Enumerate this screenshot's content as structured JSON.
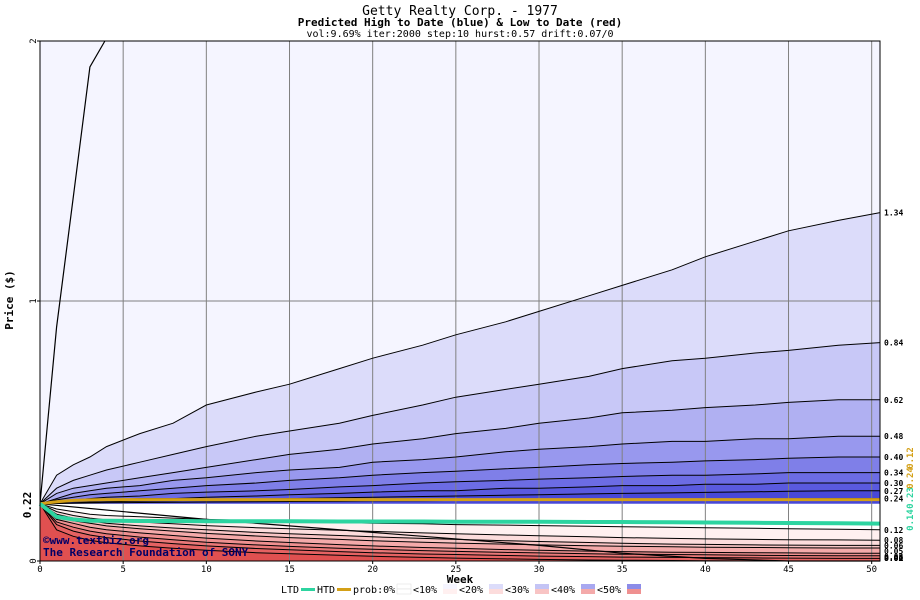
{
  "chart_data": {
    "type": "area",
    "title": "Getty Realty Corp. - 1977",
    "subtitle": "Predicted High to Date (blue) &  Low to Date (red)",
    "params": "vol:9.69% iter:2000 step:10 hurst:0.57 drift:0.07/0",
    "xlabel": "Week",
    "ylabel": "Price ($)",
    "xlim": [
      0,
      50.5
    ],
    "ylim": [
      0,
      2
    ],
    "x_ticks": [
      0,
      5,
      10,
      15,
      20,
      25,
      30,
      35,
      40,
      45,
      50
    ],
    "y_ticks": [
      0,
      1,
      2
    ],
    "start_value": 0.22,
    "start_label": "0.22",
    "grid": true,
    "x": [
      0,
      1,
      2,
      3,
      4,
      6,
      8,
      10,
      13,
      15,
      18,
      20,
      23,
      25,
      28,
      30,
      33,
      35,
      38,
      40,
      43,
      45,
      48,
      50.5
    ],
    "high_series": [
      {
        "name": "1.34",
        "label": "1.34",
        "values": [
          0.22,
          0.33,
          0.37,
          0.4,
          0.44,
          0.49,
          0.53,
          0.6,
          0.65,
          0.68,
          0.74,
          0.78,
          0.83,
          0.87,
          0.92,
          0.96,
          1.02,
          1.06,
          1.12,
          1.17,
          1.23,
          1.27,
          1.31,
          1.34
        ]
      },
      {
        "name": "0.84",
        "label": "0.84",
        "values": [
          0.22,
          0.28,
          0.31,
          0.33,
          0.35,
          0.38,
          0.41,
          0.44,
          0.48,
          0.5,
          0.53,
          0.56,
          0.6,
          0.63,
          0.66,
          0.68,
          0.71,
          0.74,
          0.77,
          0.78,
          0.8,
          0.81,
          0.83,
          0.84
        ]
      },
      {
        "name": "0.62",
        "label": "0.62",
        "values": [
          0.22,
          0.26,
          0.28,
          0.29,
          0.3,
          0.32,
          0.34,
          0.36,
          0.39,
          0.41,
          0.43,
          0.45,
          0.47,
          0.49,
          0.51,
          0.53,
          0.55,
          0.57,
          0.58,
          0.59,
          0.6,
          0.61,
          0.62,
          0.62
        ]
      },
      {
        "name": "0.48",
        "label": "0.48",
        "values": [
          0.22,
          0.24,
          0.26,
          0.27,
          0.28,
          0.29,
          0.31,
          0.32,
          0.34,
          0.35,
          0.36,
          0.38,
          0.39,
          0.4,
          0.42,
          0.43,
          0.44,
          0.45,
          0.46,
          0.46,
          0.47,
          0.47,
          0.48,
          0.48
        ]
      },
      {
        "name": "0.40",
        "label": "0.40",
        "values": [
          0.22,
          0.235,
          0.245,
          0.255,
          0.26,
          0.27,
          0.28,
          0.29,
          0.3,
          0.31,
          0.32,
          0.33,
          0.34,
          0.345,
          0.355,
          0.36,
          0.37,
          0.375,
          0.38,
          0.385,
          0.39,
          0.395,
          0.4,
          0.4
        ]
      },
      {
        "name": "0.34",
        "label": "0.34",
        "values": [
          0.22,
          0.23,
          0.235,
          0.24,
          0.245,
          0.25,
          0.26,
          0.265,
          0.27,
          0.275,
          0.285,
          0.29,
          0.3,
          0.305,
          0.31,
          0.315,
          0.32,
          0.325,
          0.33,
          0.33,
          0.335,
          0.34,
          0.34,
          0.34
        ]
      },
      {
        "name": "0.30",
        "label": "0.30",
        "values": [
          0.22,
          0.225,
          0.23,
          0.23,
          0.235,
          0.24,
          0.24,
          0.245,
          0.25,
          0.255,
          0.26,
          0.265,
          0.27,
          0.27,
          0.28,
          0.28,
          0.285,
          0.29,
          0.29,
          0.295,
          0.295,
          0.3,
          0.3,
          0.3
        ]
      },
      {
        "name": "0.27",
        "label": "0.27",
        "values": [
          0.22,
          0.222,
          0.224,
          0.226,
          0.228,
          0.23,
          0.232,
          0.235,
          0.238,
          0.24,
          0.243,
          0.245,
          0.248,
          0.25,
          0.253,
          0.255,
          0.258,
          0.26,
          0.262,
          0.264,
          0.266,
          0.268,
          0.27,
          0.27
        ]
      },
      {
        "name": "0.24",
        "label": "0.24",
        "values": [
          0.22,
          0.221,
          0.222,
          0.223,
          0.224,
          0.225,
          0.226,
          0.227,
          0.228,
          0.229,
          0.23,
          0.231,
          0.232,
          0.233,
          0.234,
          0.235,
          0.236,
          0.236,
          0.237,
          0.238,
          0.238,
          0.239,
          0.24,
          0.24
        ]
      }
    ],
    "low_series": [
      {
        "name": "0.12",
        "label": "0.12",
        "values": [
          0.22,
          0.2,
          0.19,
          0.18,
          0.175,
          0.17,
          0.165,
          0.16,
          0.155,
          0.15,
          0.148,
          0.145,
          0.143,
          0.14,
          0.138,
          0.136,
          0.134,
          0.132,
          0.13,
          0.128,
          0.126,
          0.124,
          0.122,
          0.12
        ]
      },
      {
        "name": "0.08",
        "label": "0.08",
        "values": [
          0.22,
          0.19,
          0.175,
          0.165,
          0.158,
          0.15,
          0.143,
          0.136,
          0.128,
          0.124,
          0.118,
          0.114,
          0.108,
          0.105,
          0.1,
          0.097,
          0.093,
          0.09,
          0.087,
          0.085,
          0.083,
          0.082,
          0.081,
          0.08
        ]
      },
      {
        "name": "0.06",
        "label": "0.06",
        "values": [
          0.22,
          0.18,
          0.165,
          0.155,
          0.145,
          0.135,
          0.127,
          0.12,
          0.11,
          0.105,
          0.098,
          0.093,
          0.087,
          0.083,
          0.078,
          0.075,
          0.071,
          0.068,
          0.065,
          0.064,
          0.062,
          0.061,
          0.06,
          0.06
        ]
      },
      {
        "name": "0.05",
        "label": "0.05",
        "values": [
          0.22,
          0.17,
          0.155,
          0.145,
          0.135,
          0.124,
          0.115,
          0.106,
          0.096,
          0.09,
          0.083,
          0.078,
          0.072,
          0.069,
          0.065,
          0.062,
          0.059,
          0.057,
          0.055,
          0.053,
          0.052,
          0.051,
          0.05,
          0.05
        ]
      },
      {
        "name": "0.03",
        "label": "0.03",
        "values": [
          0.22,
          0.16,
          0.145,
          0.13,
          0.12,
          0.108,
          0.098,
          0.088,
          0.077,
          0.071,
          0.063,
          0.058,
          0.052,
          0.049,
          0.044,
          0.041,
          0.038,
          0.036,
          0.034,
          0.033,
          0.032,
          0.031,
          0.03,
          0.03
        ]
      },
      {
        "name": "0.02",
        "label": "0.02",
        "values": [
          0.22,
          0.15,
          0.13,
          0.115,
          0.105,
          0.092,
          0.082,
          0.072,
          0.062,
          0.056,
          0.049,
          0.045,
          0.04,
          0.037,
          0.033,
          0.031,
          0.028,
          0.026,
          0.025,
          0.024,
          0.022,
          0.021,
          0.02,
          0.02
        ]
      },
      {
        "name": "0.01",
        "label": "0.01",
        "values": [
          0.22,
          0.14,
          0.115,
          0.1,
          0.09,
          0.077,
          0.067,
          0.058,
          0.048,
          0.043,
          0.036,
          0.032,
          0.027,
          0.025,
          0.021,
          0.019,
          0.017,
          0.015,
          0.014,
          0.013,
          0.012,
          0.011,
          0.01,
          0.01
        ]
      },
      {
        "name": "0.00",
        "label": "0.00",
        "values": [
          0.22,
          0.12,
          0.095,
          0.08,
          0.07,
          0.058,
          0.049,
          0.041,
          0.032,
          0.028,
          0.022,
          0.018,
          0.014,
          0.011,
          0.008,
          0.006,
          0.004,
          0.003,
          0.002,
          0.001,
          0.0005,
          0.0,
          0.0,
          0.0
        ]
      }
    ],
    "max_path": {
      "x": [
        0,
        1,
        2,
        3,
        3.9
      ],
      "values": [
        0.22,
        0.9,
        1.4,
        1.9,
        2.0
      ]
    },
    "min_path": {
      "x": [
        0,
        10,
        20,
        30,
        35,
        40,
        45,
        50.5
      ],
      "values": [
        0.22,
        0.16,
        0.11,
        0.06,
        0.03,
        0.01,
        0.0,
        0.0
      ]
    },
    "ltd_line": {
      "name": "LTD",
      "values": [
        0.22,
        0.17,
        0.16,
        0.155,
        0.155,
        0.154,
        0.154,
        0.153,
        0.153,
        0.153,
        0.152,
        0.152,
        0.152,
        0.151,
        0.151,
        0.151,
        0.15,
        0.15,
        0.149,
        0.148,
        0.147,
        0.146,
        0.145,
        0.144
      ]
    },
    "htd_line": {
      "name": "HTD",
      "values": [
        0.22,
        0.228,
        0.233,
        0.235,
        0.236,
        0.236,
        0.236,
        0.236,
        0.236,
        0.236,
        0.236,
        0.236,
        0.236,
        0.236,
        0.236,
        0.236,
        0.236,
        0.236,
        0.236,
        0.236,
        0.236,
        0.236,
        0.236,
        0.236
      ]
    },
    "right_edge_labels": [
      "0.14",
      "0.23",
      "0.24",
      "0.12"
    ],
    "legend": {
      "ltd": "LTD",
      "htd": "HTD",
      "prob_prefix": "prob:0%",
      "items": [
        "<10%",
        "<20%",
        "<30%",
        "<40%",
        "<50%"
      ]
    },
    "watermark": [
      "©www.textbiz.org",
      "The Research Foundation of SONY"
    ],
    "colors": {
      "ltd": "#2dd4a0",
      "htd": "#d4a017",
      "blue_fills": [
        "#f5f5ff",
        "#dcdcfa",
        "#c8c8f7",
        "#b0b0f2",
        "#9898ee",
        "#7f7fe8",
        "#6c6ce4",
        "#5a5adf",
        "#4848d8"
      ],
      "red_fills": [
        "#fff0f0",
        "#fcdcdc",
        "#f8c4c4",
        "#f4aaaa",
        "#ef9090",
        "#ea7878",
        "#e56262",
        "#e05050"
      ],
      "legend_swatches": [
        "#ffffff",
        "#f5f5ff",
        "#dcdcfa",
        "#c4c4f5",
        "#a8a8f0",
        "#8c8ce8"
      ],
      "legend_swatches_low": [
        "#ffffff",
        "#fff0f0",
        "#fcdcdc",
        "#f8c4c4",
        "#f4aaaa",
        "#ef9090"
      ]
    }
  }
}
